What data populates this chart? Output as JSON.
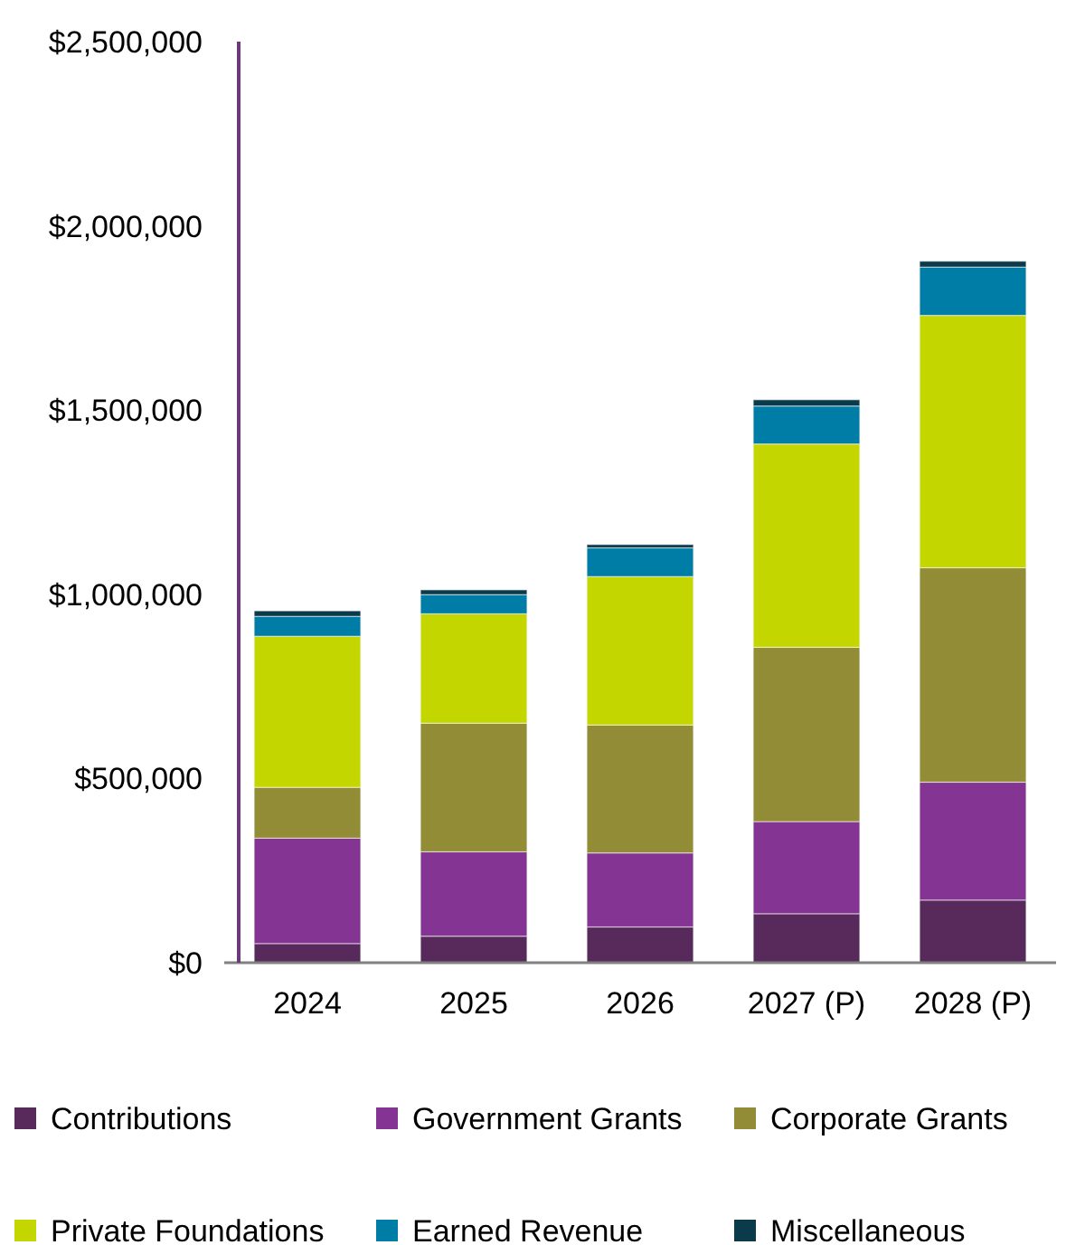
{
  "chart_data": {
    "type": "bar",
    "stacked": true,
    "categories": [
      "2024",
      "2025",
      "2026",
      "2027 (P)",
      "2028 (P)"
    ],
    "series": [
      {
        "name": "Contributions",
        "color": "#582a5c",
        "values": [
          52000,
          72000,
          97000,
          133000,
          170000
        ]
      },
      {
        "name": "Government Grants",
        "color": "#843593",
        "values": [
          286000,
          229000,
          201000,
          250000,
          320000
        ]
      },
      {
        "name": "Corporate Grants",
        "color": "#918c35",
        "values": [
          138000,
          349000,
          347000,
          473000,
          582000
        ]
      },
      {
        "name": "Private Foundations",
        "color": "#c4d600",
        "values": [
          410000,
          297000,
          403000,
          552000,
          685000
        ]
      },
      {
        "name": "Earned Revenue",
        "color": "#007da6",
        "values": [
          54000,
          52000,
          78000,
          103000,
          131000
        ]
      },
      {
        "name": "Miscellaneous",
        "color": "#0b3b4a",
        "values": [
          15000,
          13000,
          9000,
          17000,
          16000
        ]
      }
    ],
    "ylim": [
      0,
      2500000
    ],
    "yticks": [
      {
        "value": 0,
        "label": "$0"
      },
      {
        "value": 500000,
        "label": "$500,000"
      },
      {
        "value": 1000000,
        "label": "$1,000,000"
      },
      {
        "value": 1500000,
        "label": "$1,500,000"
      },
      {
        "value": 2000000,
        "label": "$2,000,000"
      },
      {
        "value": 2500000,
        "label": "$2,500,000"
      }
    ],
    "grid": false,
    "legend": "bottom"
  }
}
